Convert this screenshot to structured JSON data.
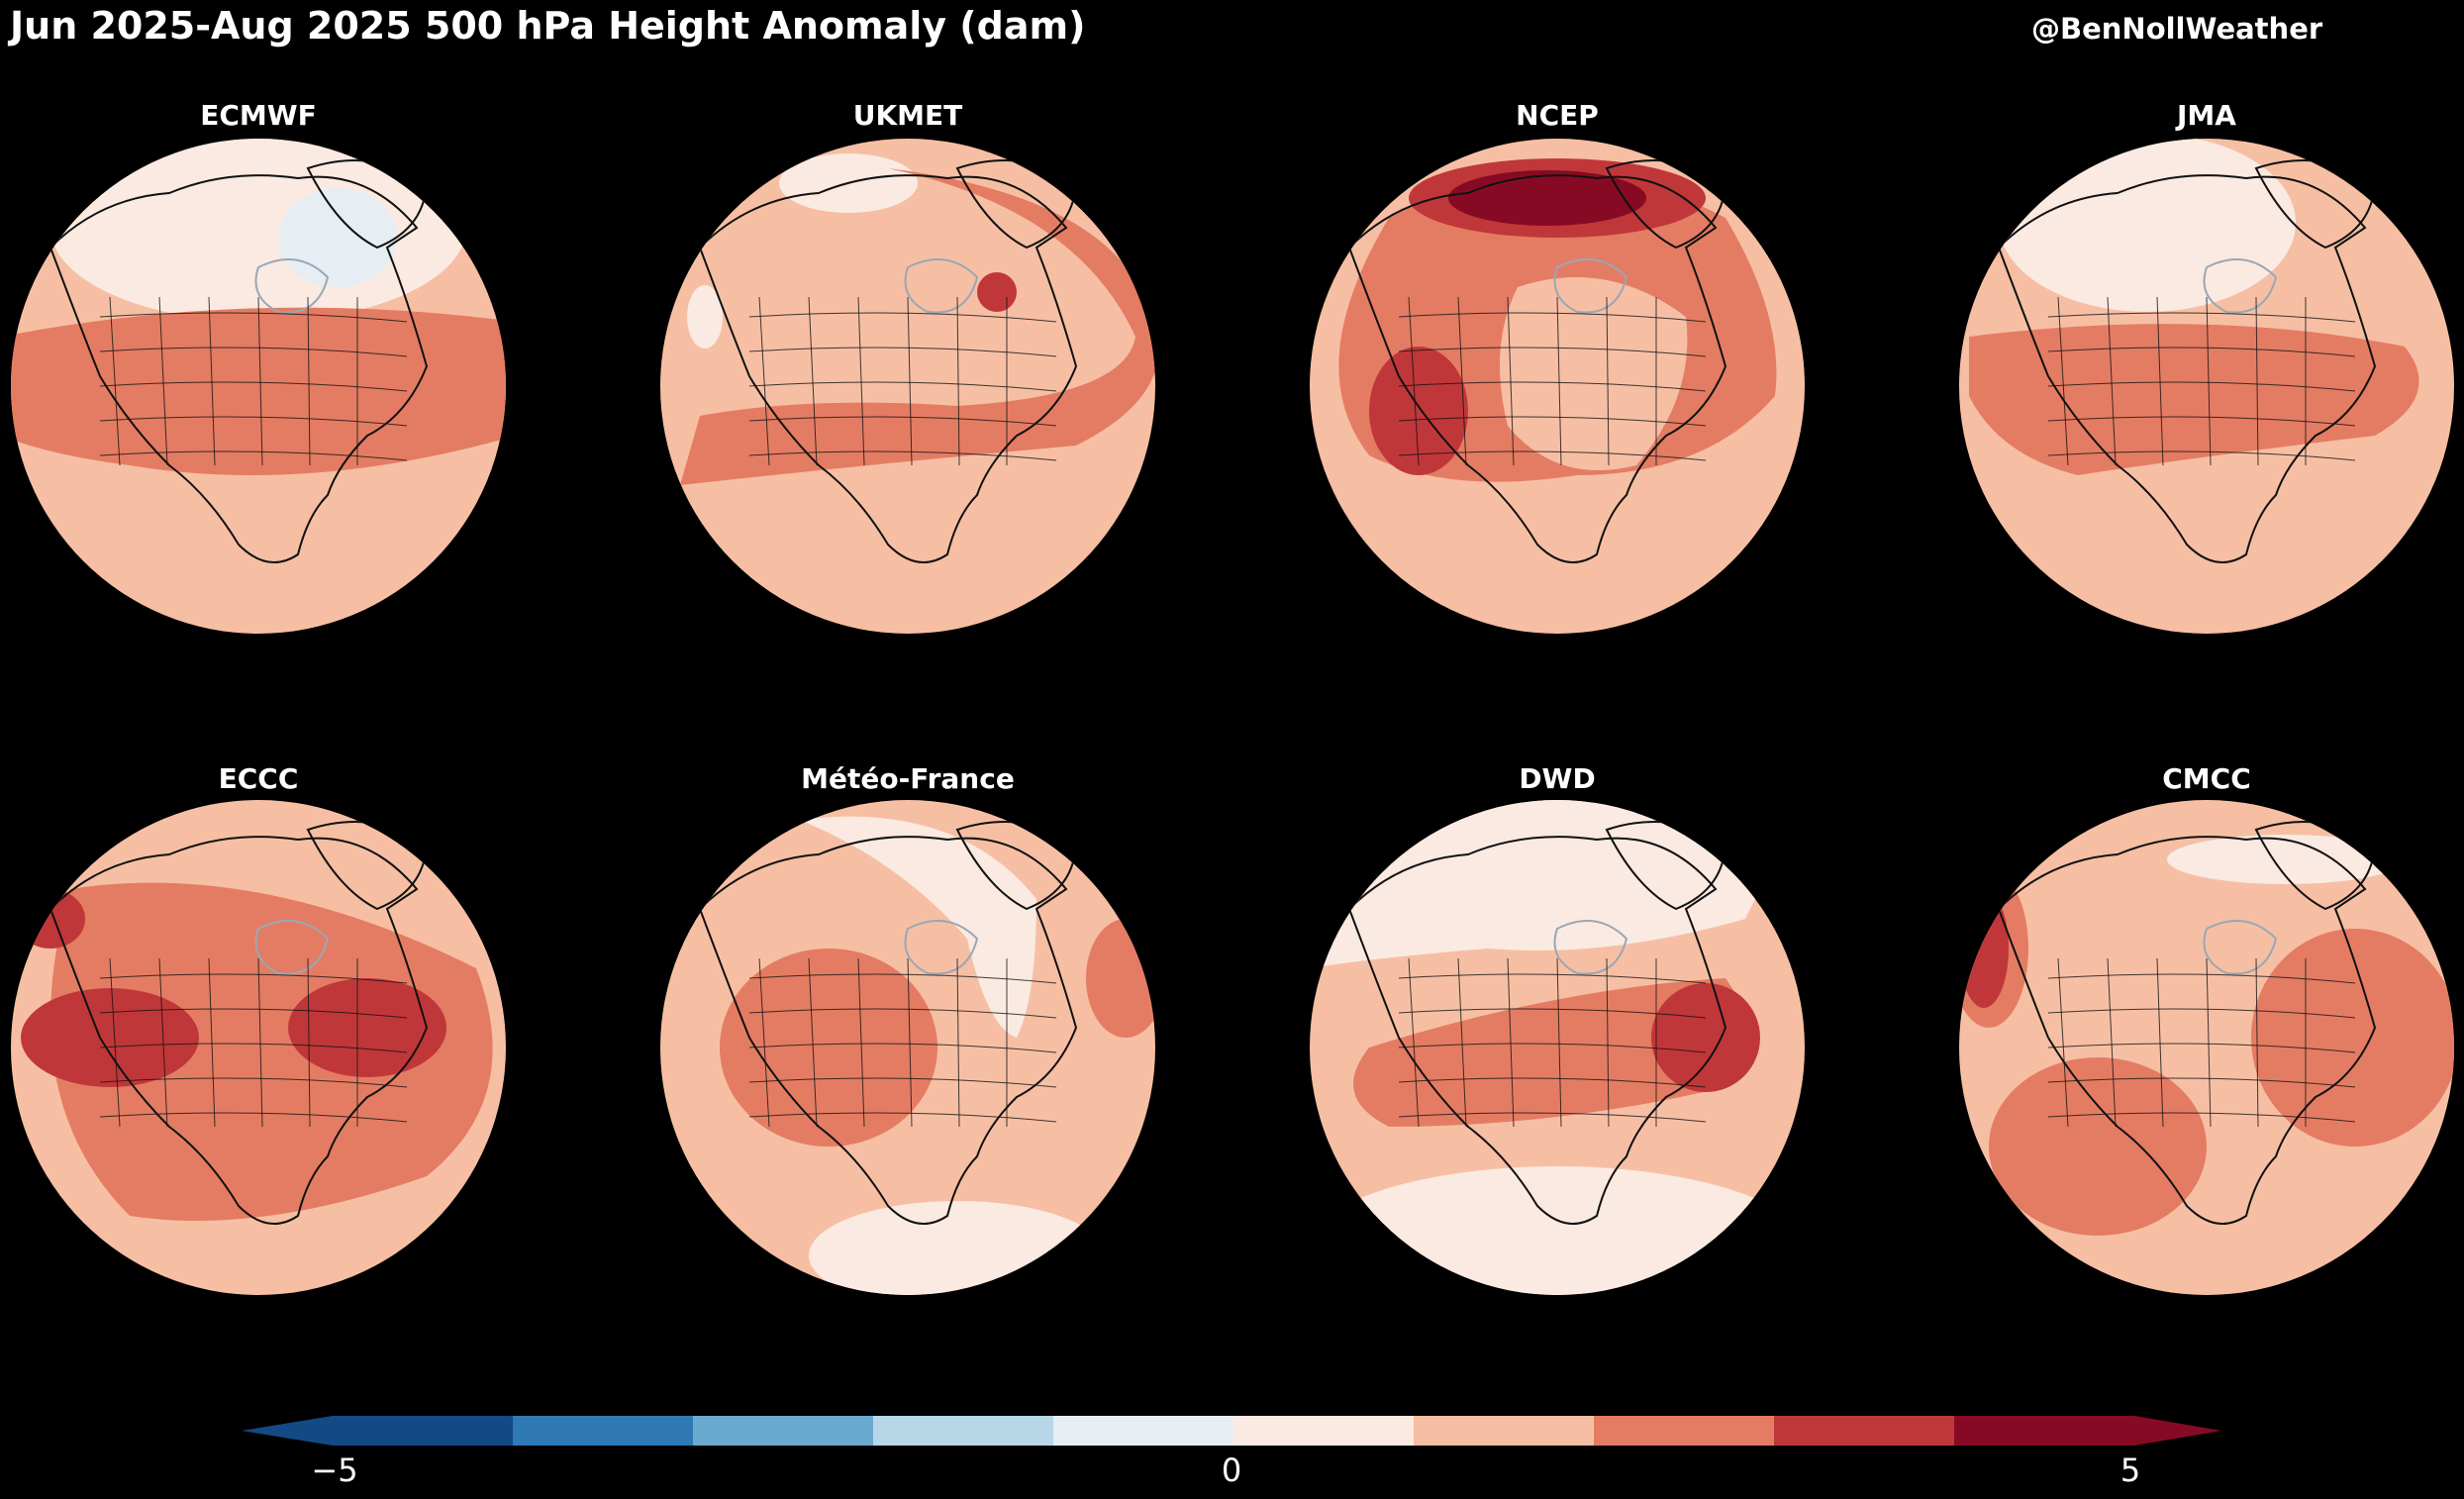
{
  "header": {
    "title": "Jun 2025-Aug 2025 500 hPa Height Anomaly (dam)",
    "credit": "@BenNollWeather"
  },
  "colors": {
    "background": "#000000",
    "neg5": "#134a86",
    "neg4": "#2f79b5",
    "neg3": "#6aaad0",
    "neg2": "#b7d7e8",
    "neg1": "#e6eef3",
    "pos1": "#faeae2",
    "pos2": "#f6bfa4",
    "pos3": "#e47c63",
    "pos4": "#c0373a",
    "pos5": "#870a24",
    "coast": "#111111",
    "lakes": "#9aa7b5"
  },
  "panels": [
    {
      "model": "ECMWF"
    },
    {
      "model": "UKMET"
    },
    {
      "model": "NCEP"
    },
    {
      "model": "JMA"
    },
    {
      "model": "ECCC"
    },
    {
      "model": "Météo-France"
    },
    {
      "model": "DWD"
    },
    {
      "model": "CMCC"
    }
  ],
  "colorbar": {
    "ticks": [
      "−5",
      "0",
      "5"
    ],
    "min": -5,
    "max": 5,
    "step": 1,
    "extend": "both"
  }
}
